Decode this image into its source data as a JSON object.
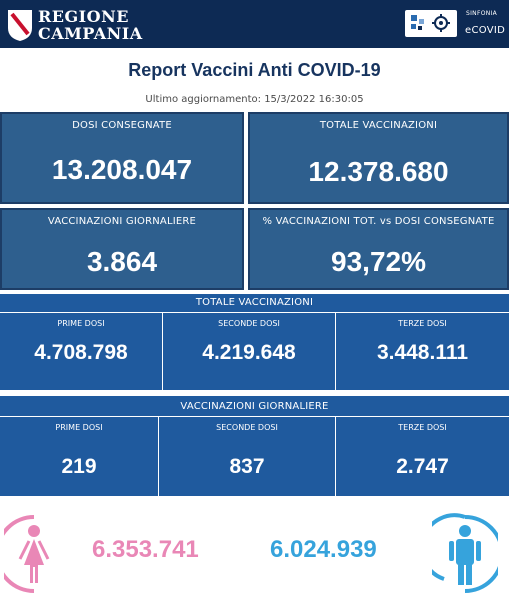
{
  "header": {
    "brand_line1": "REGIONE",
    "brand_line2": "CAMPANIA",
    "sinfonia_label": "SINFONIA",
    "app_name": "eCOVID",
    "icons": [
      "campania-logo-icon",
      "sinfonia-logo-icon"
    ]
  },
  "report": {
    "title": "Report Vaccini Anti COVID-19",
    "updated": "Ultimo aggiornamento: 15/3/2022  16:30:05"
  },
  "kpis": {
    "dosi_consegnate": {
      "label": "DOSI  CONSEGNATE",
      "value": "13.208.047"
    },
    "totale_vaccinazioni": {
      "label": "TOTALE VACCINAZIONI",
      "value": "12.378.680"
    },
    "vaccinazioni_giornaliere": {
      "label": "VACCINAZIONI GIORNALIERE",
      "value": "3.864"
    },
    "percentuale": {
      "label": "% VACCINAZIONI TOT. vs DOSI CONSEGNATE",
      "value": "93,72%"
    }
  },
  "totale_section": {
    "title": "TOTALE VACCINAZIONI",
    "columns": [
      {
        "label": "PRIME DOSI",
        "value": "4.708.798"
      },
      {
        "label": "SECONDE DOSI",
        "value": "4.219.648"
      },
      {
        "label": "TERZE DOSI",
        "value": "3.448.111"
      }
    ]
  },
  "giornaliere_section": {
    "title": "VACCINAZIONI GIORNALIERE",
    "columns": [
      {
        "label": "PRIME DOSI",
        "value": "219"
      },
      {
        "label": "SECONDE DOSI",
        "value": "837"
      },
      {
        "label": "TERZE DOSI",
        "value": "2.747"
      }
    ]
  },
  "gender": {
    "female_value": "6.353.741",
    "male_value": "6.024.939",
    "female_color": "#e987b6",
    "male_color": "#36a3dc",
    "icons": [
      "female-person-icon",
      "male-person-icon"
    ]
  },
  "colors": {
    "header_bg": "#0d2a54",
    "kpi_bg": "#2e5f8e",
    "band_bg": "#1f5a9e",
    "title_color": "#17345f"
  }
}
